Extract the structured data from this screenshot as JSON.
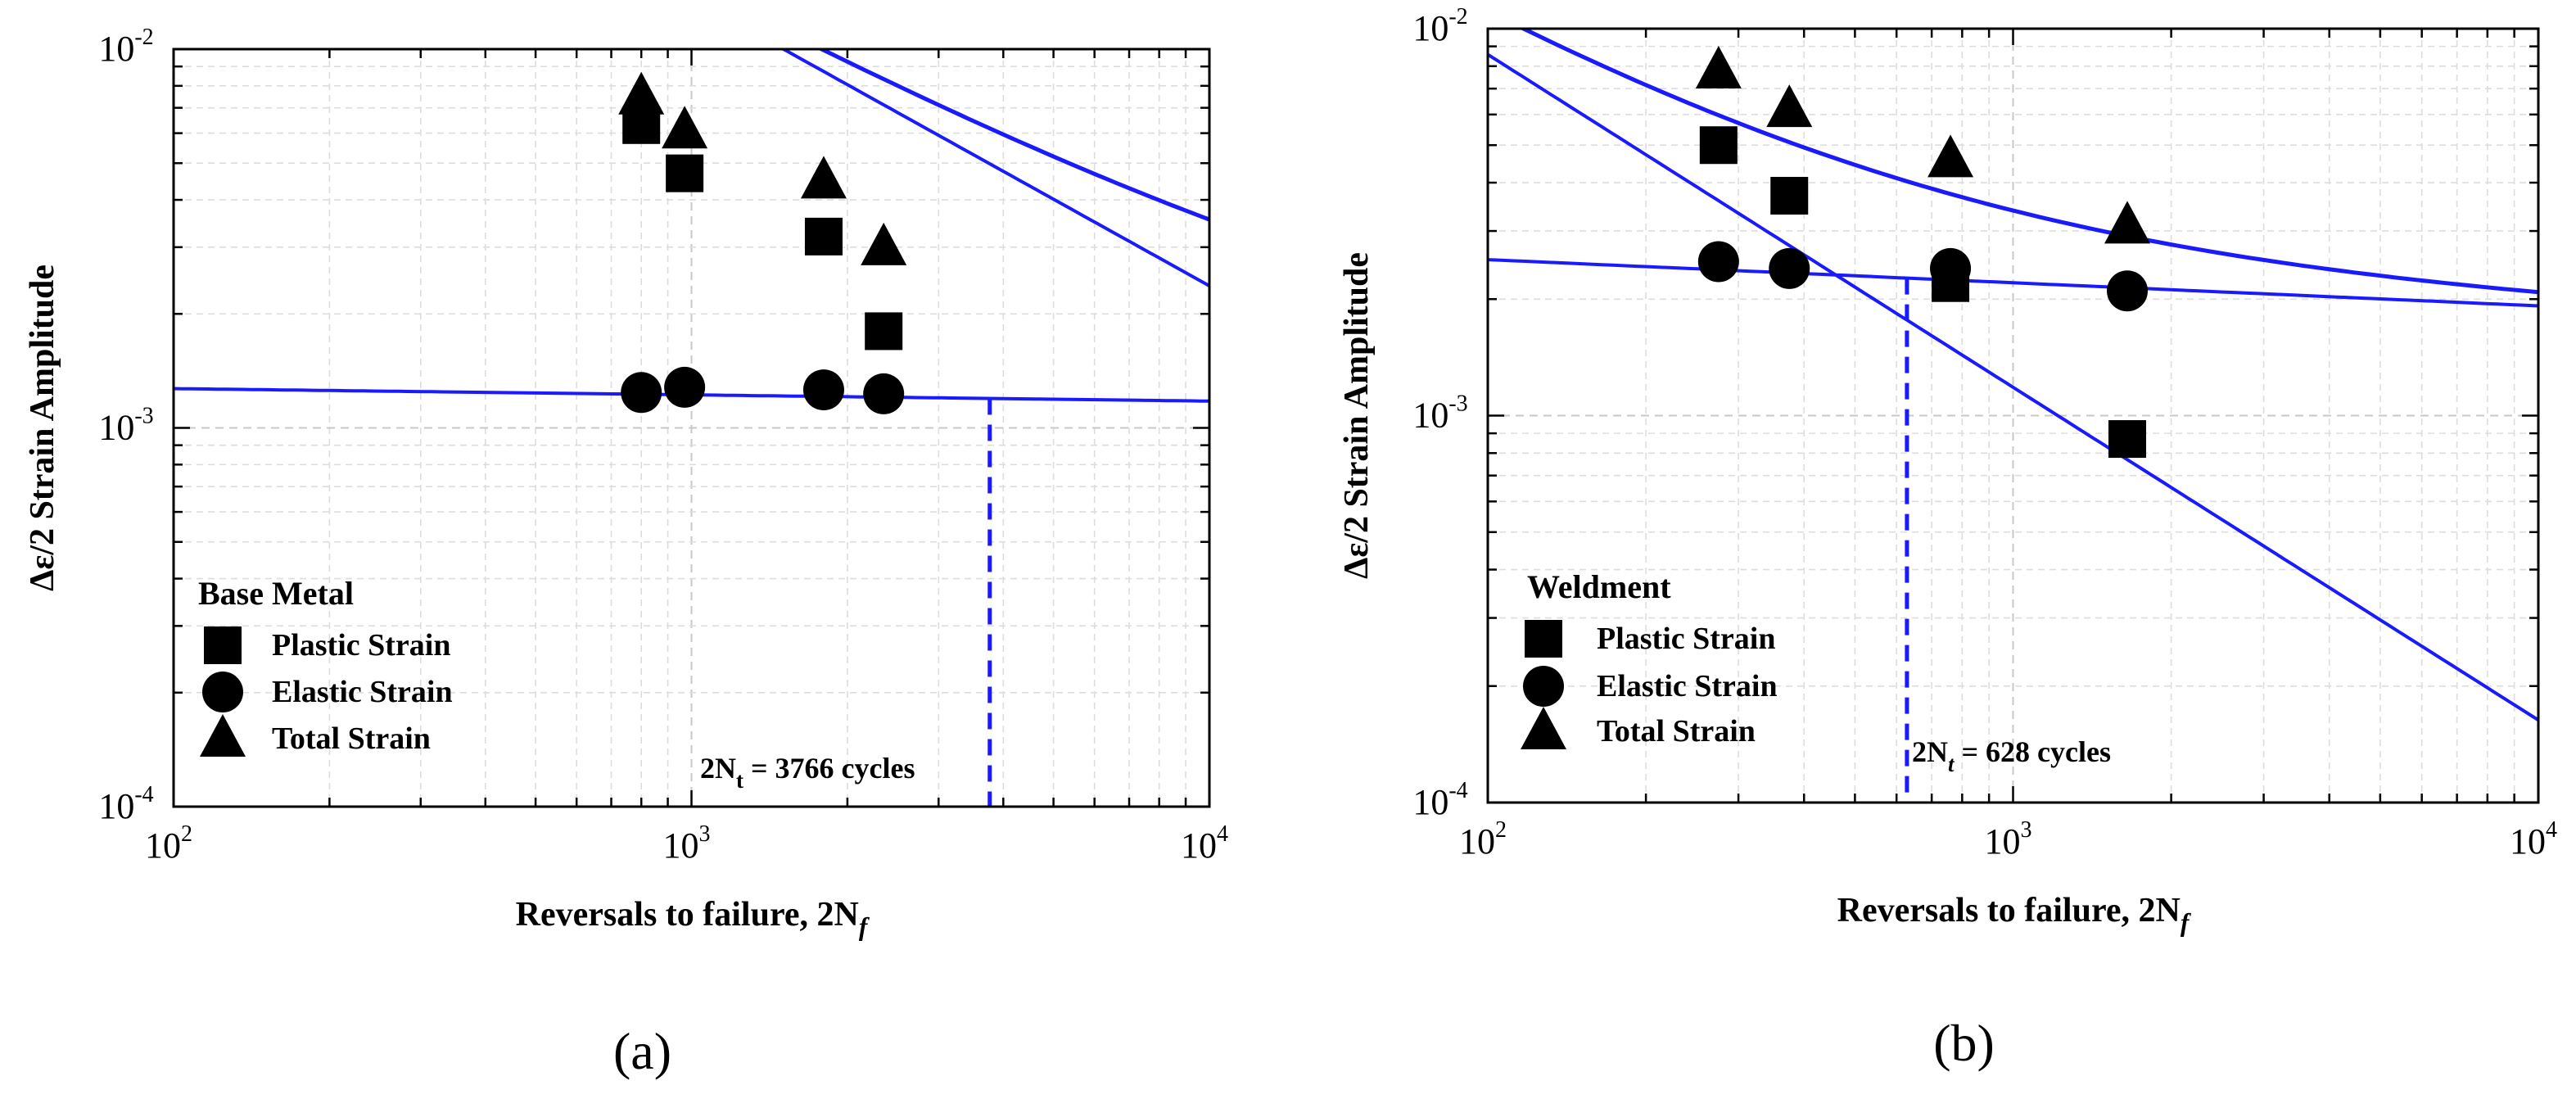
{
  "figure": {
    "panels": [
      {
        "panel_label": "(a)",
        "chart_title": "Base Metal",
        "xlabel": "Reversals to failure, 2N_f",
        "ylabel": "Δε/2 Strain Amplitude",
        "annotation": "2N_t = 3766 cycles"
      },
      {
        "panel_label": "(b)",
        "chart_title": "Weldment",
        "xlabel": "Reversals to failure, 2N_f",
        "ylabel": "Δε/2 Strain Amplitude",
        "annotation": "2N_t = 628 cycles"
      }
    ]
  },
  "chart_data": [
    {
      "type": "scatter",
      "title": "Base Metal",
      "panel_label": "(a)",
      "xlabel": "Reversals to failure, 2N_f",
      "ylabel": "Δε/2 Strain Amplitude",
      "xscale": "log",
      "yscale": "log",
      "xlim": [
        100,
        10000
      ],
      "ylim": [
        0.0001,
        0.01
      ],
      "x_ticks": [
        {
          "base": "10",
          "exp": "2"
        },
        {
          "base": "10",
          "exp": "3"
        },
        {
          "base": "10",
          "exp": "4"
        }
      ],
      "y_ticks": [
        {
          "base": "10",
          "exp": "-4"
        },
        {
          "base": "10",
          "exp": "-3"
        },
        {
          "base": "10",
          "exp": "-2"
        }
      ],
      "grid": true,
      "legend": {
        "title": "Base Metal",
        "position": "bottom-left",
        "entries": [
          {
            "marker": "square",
            "label": "Plastic Strain"
          },
          {
            "marker": "circle",
            "label": "Elastic Strain"
          },
          {
            "marker": "triangle",
            "label": "Total Strain"
          }
        ]
      },
      "series": [
        {
          "name": "Plastic Strain",
          "marker": "square",
          "x": [
            800,
            970,
            1800,
            2350
          ],
          "y": [
            0.0063,
            0.0047,
            0.0032,
            0.0018
          ]
        },
        {
          "name": "Elastic Strain",
          "marker": "circle",
          "x": [
            800,
            970,
            1800,
            2350
          ],
          "y": [
            0.00124,
            0.00128,
            0.00126,
            0.00123
          ]
        },
        {
          "name": "Total Strain",
          "marker": "triangle",
          "x": [
            800,
            970,
            1800,
            2350
          ],
          "y": [
            0.0075,
            0.0061,
            0.0045,
            0.003
          ]
        }
      ],
      "fit_lines": [
        {
          "name": "Plastic fit",
          "function": "power",
          "coefficient": 2.6,
          "exponent": -0.76
        },
        {
          "name": "Elastic fit",
          "function": "power",
          "coefficient": 0.00137,
          "exponent": -0.0165
        },
        {
          "name": "Total fit",
          "function": "sum",
          "components": [
            "Plastic fit",
            "Elastic fit"
          ]
        }
      ],
      "transition_life": {
        "x": 3766,
        "label": "2N_t = 3766 cycles"
      }
    },
    {
      "type": "scatter",
      "title": "Weldment",
      "panel_label": "(b)",
      "xlabel": "Reversals to failure, 2N_f",
      "ylabel": "Δε/2 Strain Amplitude",
      "xscale": "log",
      "yscale": "log",
      "xlim": [
        100,
        10000
      ],
      "ylim": [
        0.0001,
        0.01
      ],
      "x_ticks": [
        {
          "base": "10",
          "exp": "2"
        },
        {
          "base": "10",
          "exp": "3"
        },
        {
          "base": "10",
          "exp": "4"
        }
      ],
      "y_ticks": [
        {
          "base": "10",
          "exp": "-4"
        },
        {
          "base": "10",
          "exp": "-3"
        },
        {
          "base": "10",
          "exp": "-2"
        }
      ],
      "grid": true,
      "legend": {
        "title": "Weldment",
        "position": "bottom-left",
        "entries": [
          {
            "marker": "square",
            "label": "Plastic Strain"
          },
          {
            "marker": "circle",
            "label": "Elastic Strain"
          },
          {
            "marker": "triangle",
            "label": "Total Strain"
          }
        ]
      },
      "series": [
        {
          "name": "Plastic Strain",
          "marker": "square",
          "x": [
            275,
            375,
            760,
            1650
          ],
          "y": [
            0.005,
            0.0037,
            0.0022,
            0.00087
          ]
        },
        {
          "name": "Elastic Strain",
          "marker": "circle",
          "x": [
            275,
            375,
            760,
            1650
          ],
          "y": [
            0.0025,
            0.0024,
            0.0024,
            0.0021
          ]
        },
        {
          "name": "Total Strain",
          "marker": "triangle",
          "x": [
            275,
            375,
            760,
            1650
          ],
          "y": [
            0.0078,
            0.0062,
            0.0046,
            0.0031
          ]
        }
      ],
      "fit_lines": [
        {
          "name": "Plastic fit",
          "function": "power",
          "coefficient": 0.45,
          "exponent": -0.86
        },
        {
          "name": "Elastic fit",
          "function": "power",
          "coefficient": 0.00333,
          "exponent": -0.0597
        },
        {
          "name": "Total fit",
          "function": "sum",
          "components": [
            "Plastic fit",
            "Elastic fit"
          ]
        }
      ],
      "transition_life": {
        "x": 628,
        "label": "2N_t = 628 cycles"
      }
    }
  ]
}
